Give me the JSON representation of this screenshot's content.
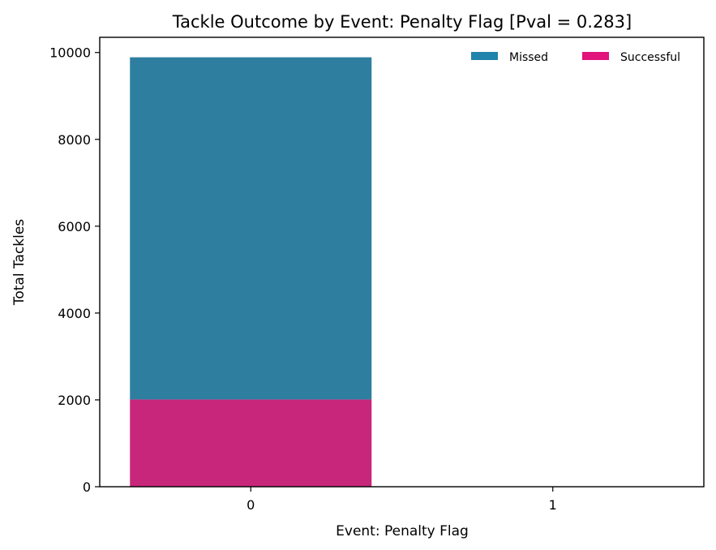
{
  "chart_data": {
    "type": "bar",
    "stacked": true,
    "title": "Tackle Outcome by Event: Penalty Flag [Pval = 0.283]",
    "xlabel": "Event: Penalty Flag",
    "ylabel": "Total Tackles",
    "categories": [
      "0",
      "1"
    ],
    "series": [
      {
        "name": "Successful",
        "values": [
          2010,
          0
        ],
        "color": "#c8267a"
      },
      {
        "name": "Missed",
        "values": [
          7880,
          0
        ],
        "color": "#2e7f9f"
      }
    ],
    "ylim": [
      0,
      10350
    ],
    "yticks": [
      0,
      2000,
      4000,
      6000,
      8000,
      10000
    ],
    "legend": {
      "position": "top-right",
      "entries": [
        {
          "label": "Missed",
          "color": "#1f83ab"
        },
        {
          "label": "Successful",
          "color": "#e0147a"
        }
      ]
    },
    "grid": false
  }
}
